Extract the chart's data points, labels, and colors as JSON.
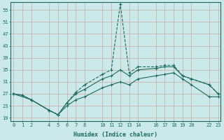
{
  "background_color": "#cce9e9",
  "line_color": "#1a6b5e",
  "grid_color": "#b0d8d8",
  "xlabel": "Humidex (Indice chaleur)",
  "xlim": [
    -0.3,
    23.3
  ],
  "ylim": [
    18,
    57.5
  ],
  "xticks": [
    0,
    1,
    2,
    4,
    5,
    6,
    7,
    8,
    10,
    11,
    12,
    13,
    14,
    16,
    17,
    18,
    19,
    20,
    22,
    23
  ],
  "yticks": [
    19,
    23,
    27,
    31,
    35,
    39,
    43,
    47,
    51,
    55
  ],
  "lines": [
    {
      "x": [
        0,
        1,
        2,
        4,
        5,
        6,
        7,
        8,
        10,
        11,
        12,
        13,
        14,
        16,
        17,
        18,
        19,
        20,
        22,
        23
      ],
      "y": [
        27,
        26.5,
        25,
        21.5,
        20,
        24,
        27.5,
        30,
        33.5,
        35,
        57,
        34,
        36,
        36,
        36.5,
        36.5,
        33,
        32,
        30,
        27
      ],
      "style": "--",
      "lw": 0.8
    },
    {
      "x": [
        0,
        2,
        4,
        5,
        6,
        7,
        8,
        10,
        11,
        12,
        13,
        14,
        16,
        17,
        18,
        19,
        20,
        22,
        23
      ],
      "y": [
        27,
        25,
        21.5,
        20,
        24,
        27,
        28.5,
        32,
        33,
        35,
        33,
        35,
        35.5,
        36,
        36,
        33,
        32,
        30,
        27
      ],
      "style": "-",
      "lw": 0.8
    },
    {
      "x": [
        0,
        1,
        2,
        4,
        5,
        6,
        7,
        8,
        10,
        11,
        12,
        13,
        14,
        16,
        17,
        18,
        19,
        20,
        22,
        23
      ],
      "y": [
        27,
        26.5,
        25,
        21.5,
        20,
        23,
        25,
        26,
        29,
        30,
        31,
        30,
        32,
        33,
        33.5,
        34,
        32,
        30,
        26,
        26
      ],
      "style": "-",
      "lw": 0.8
    }
  ]
}
